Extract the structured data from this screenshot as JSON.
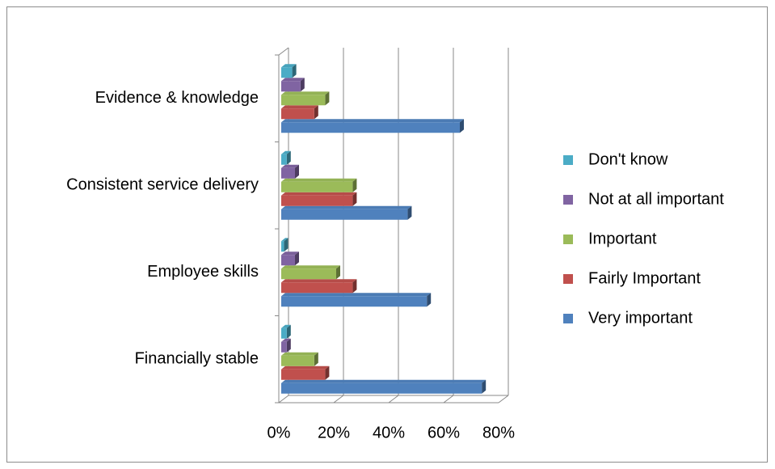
{
  "chart_data": {
    "type": "bar3d_horizontal",
    "categories": [
      "Financially stable",
      "Employee skills",
      "Consistent service delivery",
      "Evidence & knowledge"
    ],
    "series": [
      {
        "name": "Very important",
        "color": "#4F81BD",
        "values": [
          73,
          53,
          46,
          65
        ]
      },
      {
        "name": "Fairly Important",
        "color": "#C0504D",
        "values": [
          16,
          26,
          26,
          12
        ]
      },
      {
        "name": "Important",
        "color": "#9BBB59",
        "values": [
          12,
          20,
          26,
          16
        ]
      },
      {
        "name": "Not at all important",
        "color": "#8064A2",
        "values": [
          2,
          5,
          5,
          7
        ]
      },
      {
        "name": "Don't know",
        "color": "#4BACC6",
        "values": [
          2,
          1,
          2,
          4
        ]
      }
    ],
    "xlim": [
      0,
      80
    ],
    "xticks": [
      {
        "value": 0,
        "label": "0%"
      },
      {
        "value": 20,
        "label": "20%"
      },
      {
        "value": 40,
        "label": "40%"
      },
      {
        "value": 60,
        "label": "60%"
      },
      {
        "value": 80,
        "label": "80%"
      }
    ],
    "grid": true,
    "legend": "right"
  }
}
